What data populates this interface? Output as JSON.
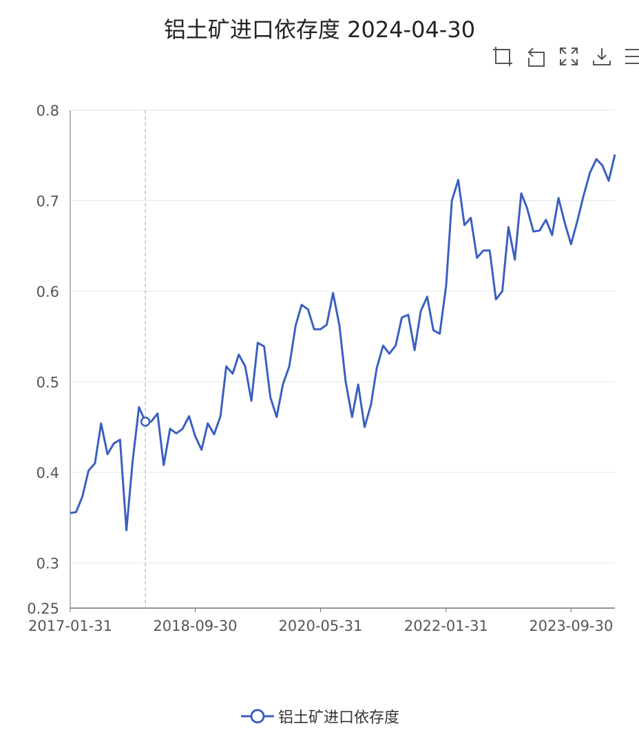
{
  "chart_data": {
    "type": "line",
    "title": "铝土矿进口依存度 2024-04-30",
    "xlabel": "",
    "ylabel": "",
    "ylim": [
      0.25,
      0.8
    ],
    "y_ticks": [
      "0.25",
      "0.3",
      "0.4",
      "0.5",
      "0.6",
      "0.7",
      "0.8"
    ],
    "x_ticks": [
      "2017-01-31",
      "2018-09-30",
      "2020-05-31",
      "2022-01-31",
      "2023-09-30"
    ],
    "x_range": [
      "2017-01-31",
      "2024-04-30"
    ],
    "grid": true,
    "legend_position": "bottom-center",
    "line_color": "#3a5fbf",
    "axis_pointer_date": "2018-01-31",
    "series": [
      {
        "name": "铝土矿进口依存度",
        "x": [
          "2017-01-31",
          "2017-02-28",
          "2017-03-31",
          "2017-04-30",
          "2017-05-31",
          "2017-06-30",
          "2017-07-31",
          "2017-08-31",
          "2017-09-30",
          "2017-10-31",
          "2017-11-30",
          "2017-12-31",
          "2018-01-31",
          "2018-02-28",
          "2018-03-31",
          "2018-04-30",
          "2018-05-31",
          "2018-06-30",
          "2018-07-31",
          "2018-08-31",
          "2018-09-30",
          "2018-10-31",
          "2018-11-30",
          "2018-12-31",
          "2019-01-31",
          "2019-02-28",
          "2019-03-31",
          "2019-04-30",
          "2019-05-31",
          "2019-06-30",
          "2019-07-31",
          "2019-08-31",
          "2019-09-30",
          "2019-10-31",
          "2019-11-30",
          "2019-12-31",
          "2020-01-31",
          "2020-02-29",
          "2020-03-31",
          "2020-04-30",
          "2020-05-31",
          "2020-06-30",
          "2020-07-31",
          "2020-08-31",
          "2020-09-30",
          "2020-10-31",
          "2020-11-30",
          "2020-12-31",
          "2021-01-31",
          "2021-02-28",
          "2021-03-31",
          "2021-04-30",
          "2021-05-31",
          "2021-06-30",
          "2021-07-31",
          "2021-08-31",
          "2021-09-30",
          "2021-10-31",
          "2021-11-30",
          "2021-12-31",
          "2022-01-31",
          "2022-02-28",
          "2022-03-31",
          "2022-04-30",
          "2022-05-31",
          "2022-06-30",
          "2022-07-31",
          "2022-08-31",
          "2022-09-30",
          "2022-10-31",
          "2022-11-30",
          "2022-12-31",
          "2023-01-31",
          "2023-02-28",
          "2023-03-31",
          "2023-04-30",
          "2023-05-31",
          "2023-06-30",
          "2023-07-31",
          "2023-08-31",
          "2023-09-30",
          "2023-10-31",
          "2023-11-30",
          "2023-12-31",
          "2024-01-31",
          "2024-02-29",
          "2024-03-31",
          "2024-04-30"
        ],
        "values": [
          0.355,
          0.356,
          0.373,
          0.402,
          0.41,
          0.454,
          0.42,
          0.432,
          0.436,
          0.336,
          0.412,
          0.472,
          0.456,
          0.456,
          0.465,
          0.408,
          0.448,
          0.443,
          0.448,
          0.462,
          0.44,
          0.425,
          0.454,
          0.442,
          0.462,
          0.517,
          0.509,
          0.53,
          0.517,
          0.479,
          0.543,
          0.539,
          0.483,
          0.461,
          0.497,
          0.517,
          0.562,
          0.585,
          0.58,
          0.558,
          0.558,
          0.563,
          0.598,
          0.562,
          0.5,
          0.461,
          0.497,
          0.45,
          0.475,
          0.515,
          0.54,
          0.531,
          0.54,
          0.571,
          0.574,
          0.535,
          0.578,
          0.594,
          0.557,
          0.553,
          0.606,
          0.7,
          0.723,
          0.673,
          0.681,
          0.637,
          0.645,
          0.645,
          0.591,
          0.6,
          0.671,
          0.635,
          0.708,
          0.692,
          0.666,
          0.667,
          0.679,
          0.662,
          0.703,
          0.675,
          0.652,
          0.678,
          0.706,
          0.731,
          0.746,
          0.739,
          0.722,
          0.751
        ]
      }
    ]
  },
  "toolbox": {
    "icons": [
      "data-zoom-icon",
      "zoom-reset-icon",
      "restore-icon",
      "download-icon",
      "menu-icon"
    ]
  }
}
